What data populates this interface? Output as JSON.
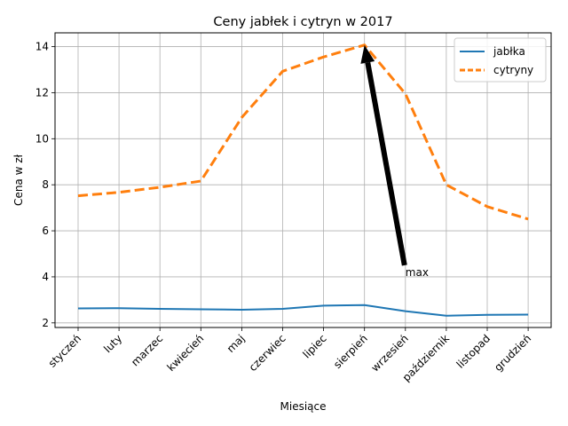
{
  "chart_data": {
    "type": "line",
    "title": "Ceny jabłek i cytryn w 2017",
    "xlabel": "Miesiące",
    "ylabel": "Cena w zł",
    "categories": [
      "styczeń",
      "luty",
      "marzec",
      "kwiecień",
      "maj",
      "czerwiec",
      "lipiec",
      "sierpień",
      "wrzesień",
      "październik",
      "listopad",
      "grudzień"
    ],
    "ylim": [
      1.8,
      14.6
    ],
    "yticks": [
      2,
      4,
      6,
      8,
      10,
      12,
      14
    ],
    "grid": true,
    "legend_position": "top-right",
    "series": [
      {
        "name": "jabłka",
        "color": "#1f77b4",
        "style": "solid",
        "values": [
          2.63,
          2.64,
          2.61,
          2.59,
          2.57,
          2.61,
          2.75,
          2.77,
          2.51,
          2.31,
          2.35,
          2.36
        ]
      },
      {
        "name": "cytryny",
        "color": "#ff7f0e",
        "style": "dashed",
        "values": [
          7.52,
          7.67,
          7.89,
          8.16,
          10.92,
          12.93,
          13.55,
          14.07,
          11.95,
          8.0,
          7.05,
          6.51
        ]
      }
    ],
    "annotations": [
      {
        "text": "max",
        "arrow_from": [
          "wrzesień",
          4.5
        ],
        "arrow_to": [
          "sierpień",
          14.07
        ]
      }
    ]
  }
}
